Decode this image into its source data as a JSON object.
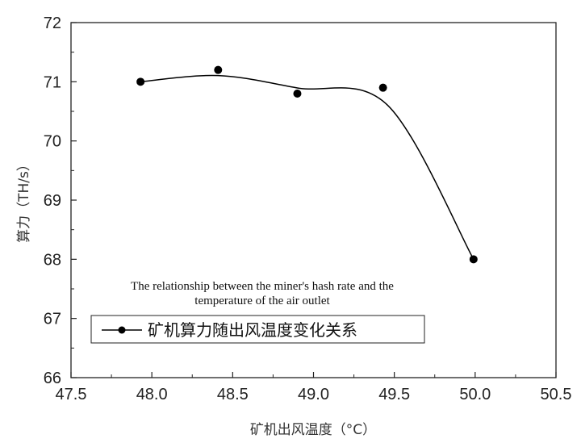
{
  "chart_data": {
    "type": "line",
    "xlabel": "矿机出风温度（°C）",
    "ylabel": "算力（TH/s）",
    "xlim": [
      47.5,
      50.5
    ],
    "ylim": [
      66,
      72
    ],
    "xticks": [
      47.5,
      48.0,
      48.5,
      49.0,
      49.5,
      50.0,
      50.5
    ],
    "xtick_labels": [
      "47.5",
      "48.0",
      "48.5",
      "49.0",
      "49.5",
      "50.0",
      "50.5"
    ],
    "yticks": [
      66,
      67,
      68,
      69,
      70,
      71,
      72
    ],
    "ytick_labels": [
      "66",
      "67",
      "68",
      "69",
      "70",
      "71",
      "72"
    ],
    "series": [
      {
        "name": "矿机算力随出风温度变化关系",
        "x": [
          47.93,
          48.41,
          48.9,
          49.43,
          49.99
        ],
        "y": [
          71.0,
          71.2,
          70.8,
          70.9,
          68.0
        ],
        "marker": "circle",
        "color": "#000000",
        "smooth_fit": true
      }
    ],
    "annotation": [
      "The relationship between the miner's hash rate and the",
      "temperature of the air outlet"
    ],
    "legend_position": "lower-left",
    "grid": false
  }
}
